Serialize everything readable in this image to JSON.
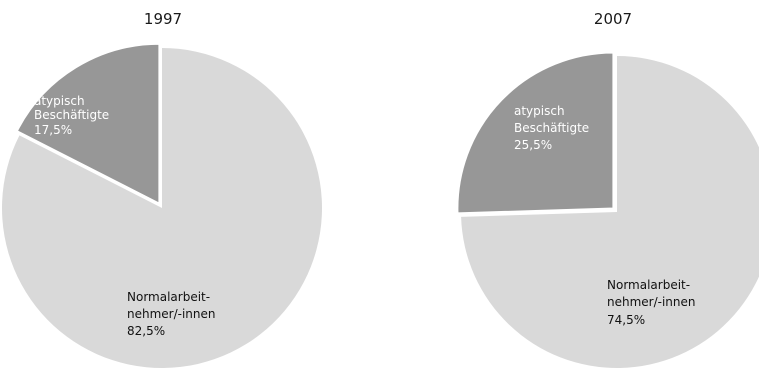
{
  "chart_data": [
    {
      "type": "pie",
      "title": "1997",
      "slices": [
        {
          "key": "atypical",
          "label_lines": [
            "atypisch",
            "Beschäftigte"
          ],
          "value_label": "17,5%",
          "value": 17.5,
          "color": "#979797"
        },
        {
          "key": "normal",
          "label_lines": [
            "Normalarbeit-",
            "nehmer/-innen"
          ],
          "value_label": "82,5%",
          "value": 82.5,
          "color": "#d9d9d9"
        }
      ]
    },
    {
      "type": "pie",
      "title": "2007",
      "slices": [
        {
          "key": "atypical",
          "label_lines": [
            "atypisch",
            "Beschäftigte"
          ],
          "value_label": "25,5%",
          "value": 25.5,
          "color": "#979797"
        },
        {
          "key": "normal",
          "label_lines": [
            "Normalarbeit-",
            "nehmer/-innen"
          ],
          "value_label": "74,5%",
          "value": 74.5,
          "color": "#d9d9d9"
        }
      ]
    }
  ]
}
